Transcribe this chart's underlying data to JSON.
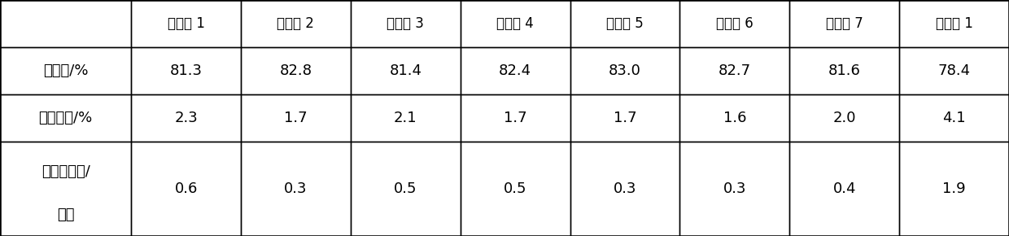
{
  "col_headers": [
    "",
    "实施例 1",
    "实施例 2",
    "实施例 3",
    "实施例 4",
    "实施例 5",
    "实施例 6",
    "实施例 7",
    "对比例 1"
  ],
  "rows": [
    {
      "label_line1": "脱硫率/%",
      "label_line2": "",
      "values": [
        "81.3",
        "82.8",
        "81.4",
        "82.4",
        "83.0",
        "82.7",
        "81.6",
        "78.4"
      ]
    },
    {
      "label_line1": "烯烃降量/%",
      "label_line2": "",
      "values": [
        "2.3",
        "1.7",
        "2.1",
        "1.7",
        "1.7",
        "1.6",
        "2.0",
        "4.1"
      ]
    },
    {
      "label_line1": "辛烷値损失/",
      "label_line2": "单位",
      "values": [
        "0.6",
        "0.3",
        "0.5",
        "0.5",
        "0.3",
        "0.3",
        "0.4",
        "1.9"
      ]
    }
  ],
  "background_color": "#ffffff",
  "line_color": "#000000",
  "font_size": 13,
  "header_font_size": 12
}
